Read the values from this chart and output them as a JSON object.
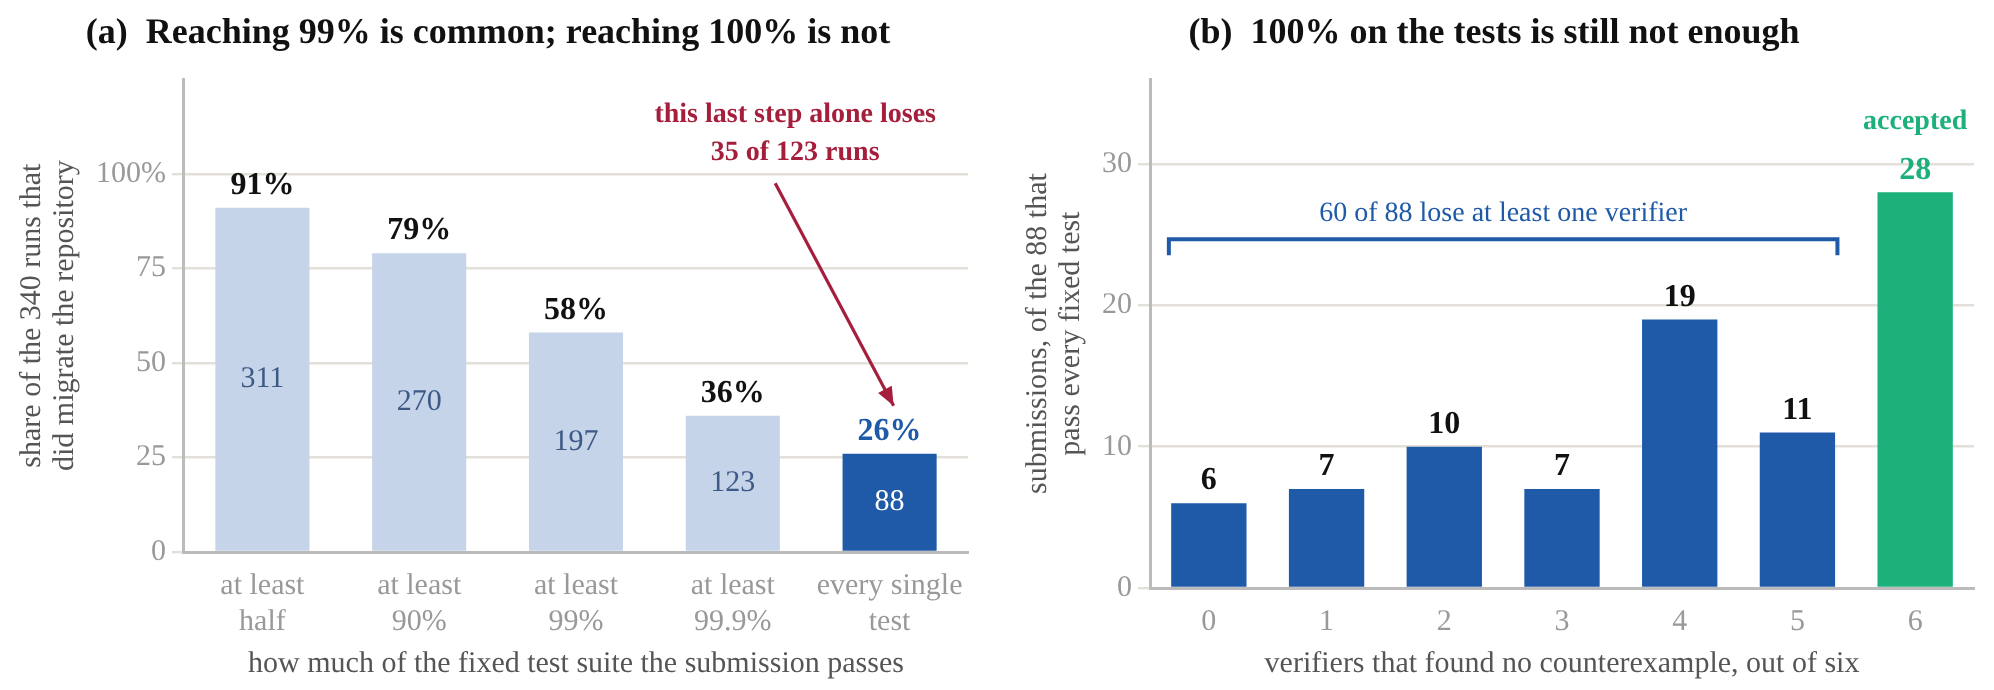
{
  "chart_data": [
    {
      "type": "bar",
      "title": "(a)  Reaching 99% is common; reaching 100% is not",
      "xlabel": "how much of the fixed test suite the submission passes",
      "ylabel": "share of the 340 runs that\ndid migrate the repository",
      "categories": [
        "at least\nhalf",
        "at least\n90%",
        "at least\n99%",
        "at least\n99.9%",
        "every single\ntest"
      ],
      "values": [
        91,
        79,
        58,
        36,
        26
      ],
      "colors": [
        "#c5d4e8",
        "#c5d4e8",
        "#c5d4e8",
        "#c5d4e8",
        "#1f5aa8"
      ],
      "value_labels": [
        "91%",
        "79%",
        "58%",
        "36%",
        "26%"
      ],
      "ylim": [
        0,
        125
      ],
      "yticks": [
        0,
        25,
        50,
        75,
        {
          "value": 100,
          "label": "100%"
        }
      ],
      "grid": "y",
      "annotations": [
        "this last step alone loses\n35 of 123 runs",
        "311",
        "270",
        "197",
        "123",
        "88"
      ]
    },
    {
      "type": "bar",
      "title": "(b)  100% on the tests is still not enough",
      "xlabel": "verifiers that found no counterexample, out of six",
      "ylabel": "submissions, of the 88 that\npass every fixed test",
      "categories": [
        "0",
        "1",
        "2",
        "3",
        "4",
        "5",
        "6"
      ],
      "values": [
        6,
        7,
        10,
        7,
        19,
        11,
        28
      ],
      "colors": [
        "#1f5aa8",
        "#1f5aa8",
        "#1f5aa8",
        "#1f5aa8",
        "#1f5aa8",
        "#1f5aa8",
        "#1db07a"
      ],
      "data_labels": true,
      "ylim": [
        0,
        36
      ],
      "yticks": [
        0,
        10,
        20,
        30
      ],
      "grid": "y",
      "annotations": [
        "60 of 88 lose at least one verifier",
        {
          "text": "accepted",
          "x": "6",
          "y": 28
        }
      ]
    }
  ]
}
